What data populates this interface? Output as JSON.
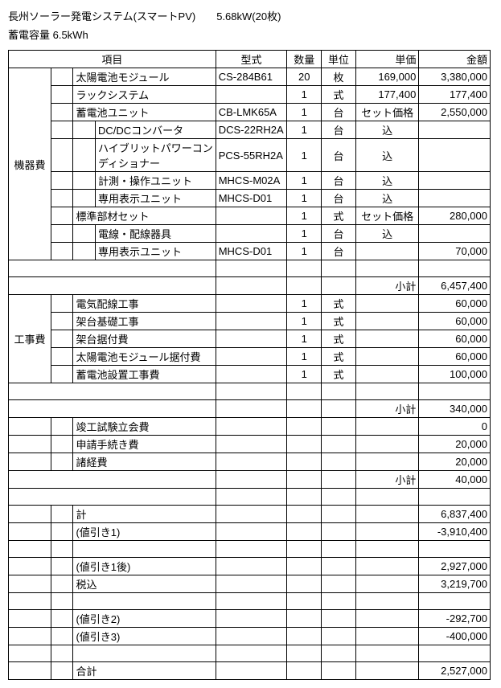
{
  "header": {
    "line1": "長州ソーラー発電システム(スマートPV)　　5.68kW(20枚)",
    "line2": "蓄電容量 6.5kWh"
  },
  "columns": {
    "item": "項目",
    "model": "型式",
    "qty": "数量",
    "unit": "単位",
    "price": "単価",
    "amount": "金額"
  },
  "cat1": "機器費",
  "rows1": [
    {
      "indent": 1,
      "item": "太陽電池モジュール",
      "model": "CS-284B61",
      "qty": "20",
      "unit": "枚",
      "price": "169,000",
      "amount": "3,380,000"
    },
    {
      "indent": 1,
      "item": "ラックシステム",
      "model": "",
      "qty": "1",
      "unit": "式",
      "price": "177,400",
      "amount": "177,400"
    },
    {
      "indent": 1,
      "item": "蓄電池ユニット",
      "model": "CB-LMK65A",
      "qty": "1",
      "unit": "台",
      "price": "セット価格",
      "amount": "2,550,000"
    },
    {
      "indent": 2,
      "item": "DC/DCコンバータ",
      "model": "DCS-22RH2A",
      "qty": "1",
      "unit": "台",
      "price": "込",
      "amount": ""
    },
    {
      "indent": 2,
      "item": "ハイブリットパワーコンディショナー",
      "model": "PCS-55RH2A",
      "qty": "1",
      "unit": "台",
      "price": "込",
      "amount": ""
    },
    {
      "indent": 2,
      "item": "計測・操作ユニット",
      "model": "MHCS-M02A",
      "qty": "1",
      "unit": "台",
      "price": "込",
      "amount": ""
    },
    {
      "indent": 2,
      "item": "専用表示ユニット",
      "model": "MHCS-D01",
      "qty": "1",
      "unit": "台",
      "price": "込",
      "amount": ""
    },
    {
      "indent": 1,
      "item": "標準部材セット",
      "model": "",
      "qty": "1",
      "unit": "式",
      "price": "セット価格",
      "amount": "280,000"
    },
    {
      "indent": 2,
      "item": "電線・配線器具",
      "model": "",
      "qty": "1",
      "unit": "台",
      "price": "込",
      "amount": ""
    },
    {
      "indent": 2,
      "item": "専用表示ユニット",
      "model": "MHCS-D01",
      "qty": "1",
      "unit": "台",
      "price": "",
      "amount": "70,000"
    }
  ],
  "sub1_label": "小計",
  "sub1_amt": "6,457,400",
  "cat2": "工事費",
  "rows2": [
    {
      "item": "電気配線工事",
      "qty": "1",
      "unit": "式",
      "amount": "60,000"
    },
    {
      "item": "架台基礎工事",
      "qty": "1",
      "unit": "式",
      "amount": "60,000"
    },
    {
      "item": "架台据付費",
      "qty": "1",
      "unit": "式",
      "amount": "60,000"
    },
    {
      "item": "太陽電池モジュール据付費",
      "qty": "1",
      "unit": "式",
      "amount": "60,000"
    },
    {
      "item": "蓄電池設置工事費",
      "qty": "1",
      "unit": "式",
      "amount": "100,000"
    }
  ],
  "sub2_label": "小計",
  "sub2_amt": "340,000",
  "rows3": [
    {
      "item": "竣工試験立会費",
      "amount": "0"
    },
    {
      "item": "申請手続き費",
      "amount": "20,000"
    },
    {
      "item": "諸経費",
      "amount": "20,000"
    }
  ],
  "sub3_label": "小計",
  "sub3_amt": "40,000",
  "totals": [
    {
      "label": "計",
      "amount": "6,837,400"
    },
    {
      "label": "(値引き1)",
      "amount": "-3,910,400"
    },
    {
      "label": "",
      "amount": ""
    },
    {
      "label": "(値引き1後)",
      "amount": "2,927,000"
    },
    {
      "label": "税込",
      "amount": "3,219,700"
    },
    {
      "label": "",
      "amount": ""
    },
    {
      "label": "(値引き2)",
      "amount": "-292,700"
    },
    {
      "label": "(値引き3)",
      "amount": "-400,000"
    },
    {
      "label": "",
      "amount": ""
    },
    {
      "label": "合計",
      "amount": "2,527,000"
    }
  ]
}
